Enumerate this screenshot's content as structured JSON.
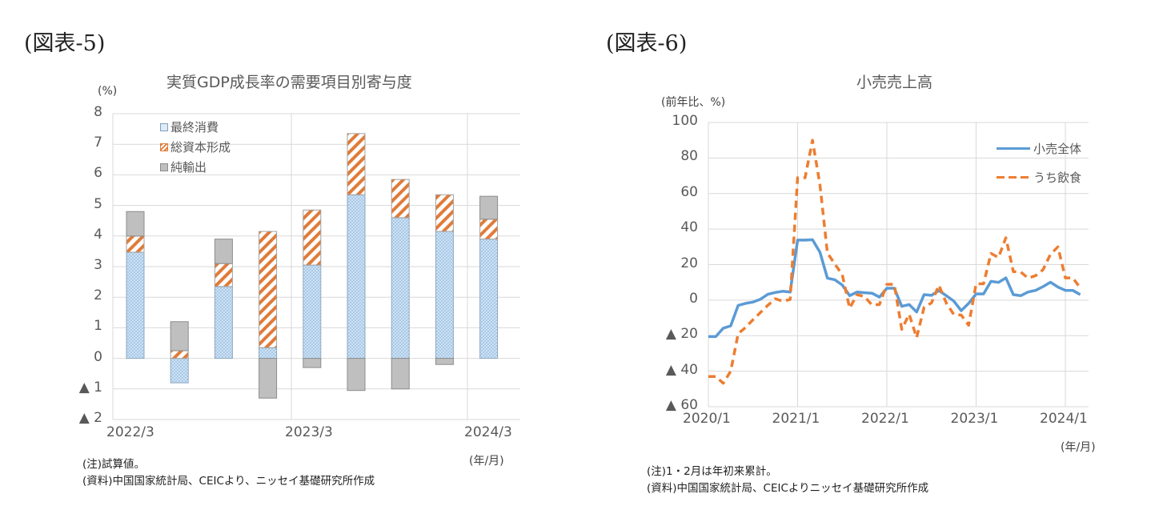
{
  "left": {
    "fig_label": "(図表-5)",
    "title": "実質GDP成長率の需要項目別寄与度",
    "unit": "(%)",
    "y_ticks": [
      "8",
      "7",
      "6",
      "5",
      "4",
      "3",
      "2",
      "1",
      "0",
      "▲ 1",
      "▲ 2"
    ],
    "x_ticks": [
      "2022/3",
      "2023/3",
      "2024/3"
    ],
    "x_unit": "(年/月)",
    "legend": [
      "最終消費",
      "総資本形成",
      "純輸出"
    ],
    "notes": [
      "(注)試算値。",
      "(資料)中国国家統計局、CEICより、ニッセイ基礎研究所作成"
    ]
  },
  "right": {
    "fig_label": "(図表-6)",
    "title": "小売売上高",
    "unit": "(前年比、%)",
    "y_ticks": [
      "100",
      "80",
      "60",
      "40",
      "20",
      "0",
      "▲ 20",
      "▲ 40",
      "▲ 60"
    ],
    "x_ticks": [
      "2020/1",
      "2021/1",
      "2022/1",
      "2023/1",
      "2024/1"
    ],
    "x_unit": "(年/月)",
    "legend": [
      "小売全体",
      "うち飲食"
    ],
    "notes": [
      "(注)1・2月は年初来累計。",
      "(資料)中国国家統計局、CEICよりニッセイ基礎研究所作成"
    ]
  },
  "colors": {
    "consumption": "#9dc3e6",
    "consumption_bg": "#deebf7",
    "capital": "#e07b39",
    "net_exports": "#bfbfbf",
    "retail_total": "#5b9bd5",
    "retail_dining": "#ed7d31",
    "grid": "#d9d9d9"
  },
  "chart_data": [
    {
      "type": "bar",
      "stacked": true,
      "title": "実質GDP成長率の需要項目別寄与度",
      "xlabel": "(年/月)",
      "ylabel": "(%)",
      "ylim": [
        -2,
        8
      ],
      "categories": [
        "2022/3",
        "2022/6",
        "2022/9",
        "2022/12",
        "2023/3",
        "2023/6",
        "2023/9",
        "2023/12",
        "2024/3"
      ],
      "series": [
        {
          "name": "最終消費",
          "values": [
            3.47,
            -0.8,
            2.35,
            0.35,
            3.05,
            5.35,
            4.6,
            4.15,
            3.9
          ]
        },
        {
          "name": "総資本形成",
          "values": [
            0.53,
            0.25,
            0.75,
            3.8,
            1.8,
            2.0,
            1.25,
            1.2,
            0.65
          ]
        },
        {
          "name": "純輸出",
          "values": [
            0.8,
            0.95,
            0.8,
            -1.3,
            -0.3,
            -1.05,
            -1.0,
            -0.2,
            0.75
          ]
        }
      ],
      "grid": true,
      "legend_position": "upper-left-inside",
      "notes": [
        "(注)試算値。",
        "(資料)中国国家統計局、CEICより、ニッセイ基礎研究所作成"
      ]
    },
    {
      "type": "line",
      "title": "小売売上高",
      "xlabel": "(年/月)",
      "ylabel": "(前年比、%)",
      "ylim": [
        -60,
        100
      ],
      "x_start": "2020/1",
      "x_end": "2024/3",
      "x_tick_labels": [
        "2020/1",
        "2021/1",
        "2022/1",
        "2023/1",
        "2024/1"
      ],
      "series": [
        {
          "name": "小売全体",
          "style": "solid",
          "values": [
            -20.5,
            -20.5,
            -15.8,
            -14.5,
            -3,
            -1.8,
            -1.1,
            0.5,
            3.3,
            4.3,
            5.0,
            4.6,
            33.8,
            33.8,
            34.0,
            27,
            12.4,
            11.5,
            8.5,
            2.5,
            4.6,
            4.2,
            3.9,
            1.7,
            6.7,
            6.7,
            -3.5,
            -2.5,
            -6.7,
            3.1,
            2.7,
            5.4,
            2.5,
            -0.5,
            -5.9,
            -1.8,
            3.5,
            3.5,
            10.6,
            10.0,
            12.5,
            3.1,
            2.5,
            4.6,
            5.5,
            7.6,
            10.1,
            7.4,
            5.5,
            5.5,
            3.1
          ]
        },
        {
          "name": "うち飲食",
          "style": "dashed",
          "values": [
            -43,
            -43,
            -46.8,
            -40,
            -18.9,
            -15.4,
            -11,
            -7,
            -2.9,
            0.8,
            -0.6,
            0.4,
            68.9,
            68.9,
            90.0,
            65,
            26.6,
            20.3,
            14.3,
            -4.5,
            3.1,
            2.0,
            -2.7,
            -2.5,
            8.9,
            8.9,
            -16.4,
            -8,
            -21.1,
            -4,
            -1.5,
            8.4,
            -1.7,
            -8.1,
            -8.4,
            -14.1,
            9.2,
            9.2,
            26.3,
            24,
            35.1,
            16.1,
            15.8,
            12.4,
            13.8,
            17.1,
            25.8,
            30.0,
            12.5,
            12.5,
            6.9
          ]
        }
      ],
      "grid": true,
      "legend_position": "upper-right-inside",
      "notes": [
        "(注)1・2月は年初来累計。",
        "(資料)中国国家統計局、CEICよりニッセイ基礎研究所作成"
      ]
    }
  ]
}
